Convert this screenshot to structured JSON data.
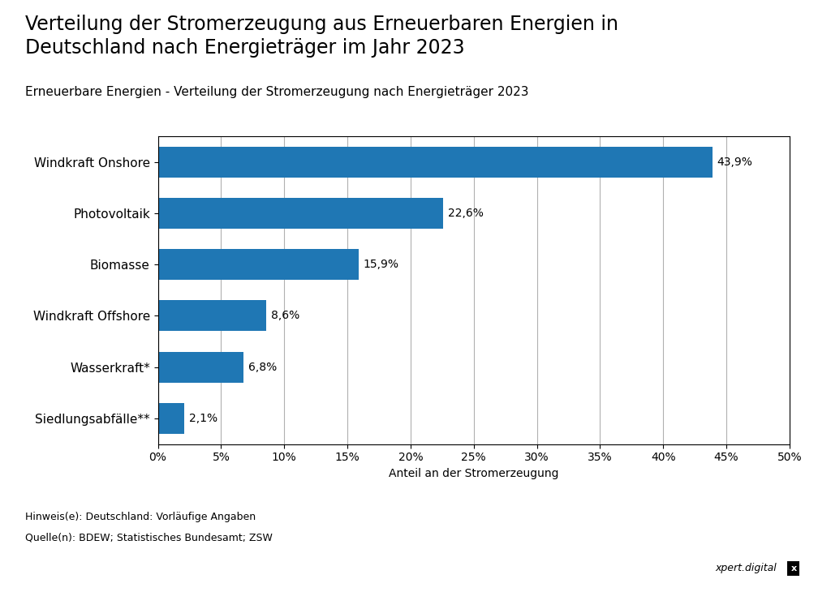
{
  "chart_data": {
    "type": "bar",
    "orientation": "horizontal",
    "title": "Verteilung der Stromerzeugung aus Erneuerbaren Energien in\nDeutschland nach Energieträger im Jahr 2023",
    "subtitle": "Erneuerbare Energien - Verteilung der Stromerzeugung nach Energieträger 2023",
    "xlabel": "Anteil an der Stromerzeugung",
    "categories": [
      "Windkraft Onshore",
      "Photovoltaik",
      "Biomasse",
      "Windkraft Offshore",
      "Wasserkraft*",
      "Siedlungsabfälle**"
    ],
    "values": [
      43.9,
      22.6,
      15.9,
      8.6,
      6.8,
      2.1
    ],
    "value_labels": [
      "43,9%",
      "22,6%",
      "15,9%",
      "8,6%",
      "6,8%",
      "2,1%"
    ],
    "data_labels": true,
    "xlim": [
      0,
      50
    ],
    "xticks": [
      {
        "value": 0,
        "label": "0%"
      },
      {
        "value": 5,
        "label": "5%"
      },
      {
        "value": 10,
        "label": "10%"
      },
      {
        "value": 15,
        "label": "15%"
      },
      {
        "value": 20,
        "label": "20%"
      },
      {
        "value": 25,
        "label": "25%"
      },
      {
        "value": 30,
        "label": "30%"
      },
      {
        "value": 35,
        "label": "35%"
      },
      {
        "value": 40,
        "label": "40%"
      },
      {
        "value": 45,
        "label": "45%"
      },
      {
        "value": 50,
        "label": "50%"
      }
    ],
    "grid": true,
    "annotations": [
      "Hinweis(e): Deutschland: Vorläufige Angaben",
      "Quelle(n): BDEW; Statistisches Bundesamt; ZSW",
      "xpert.digital",
      "x"
    ]
  }
}
